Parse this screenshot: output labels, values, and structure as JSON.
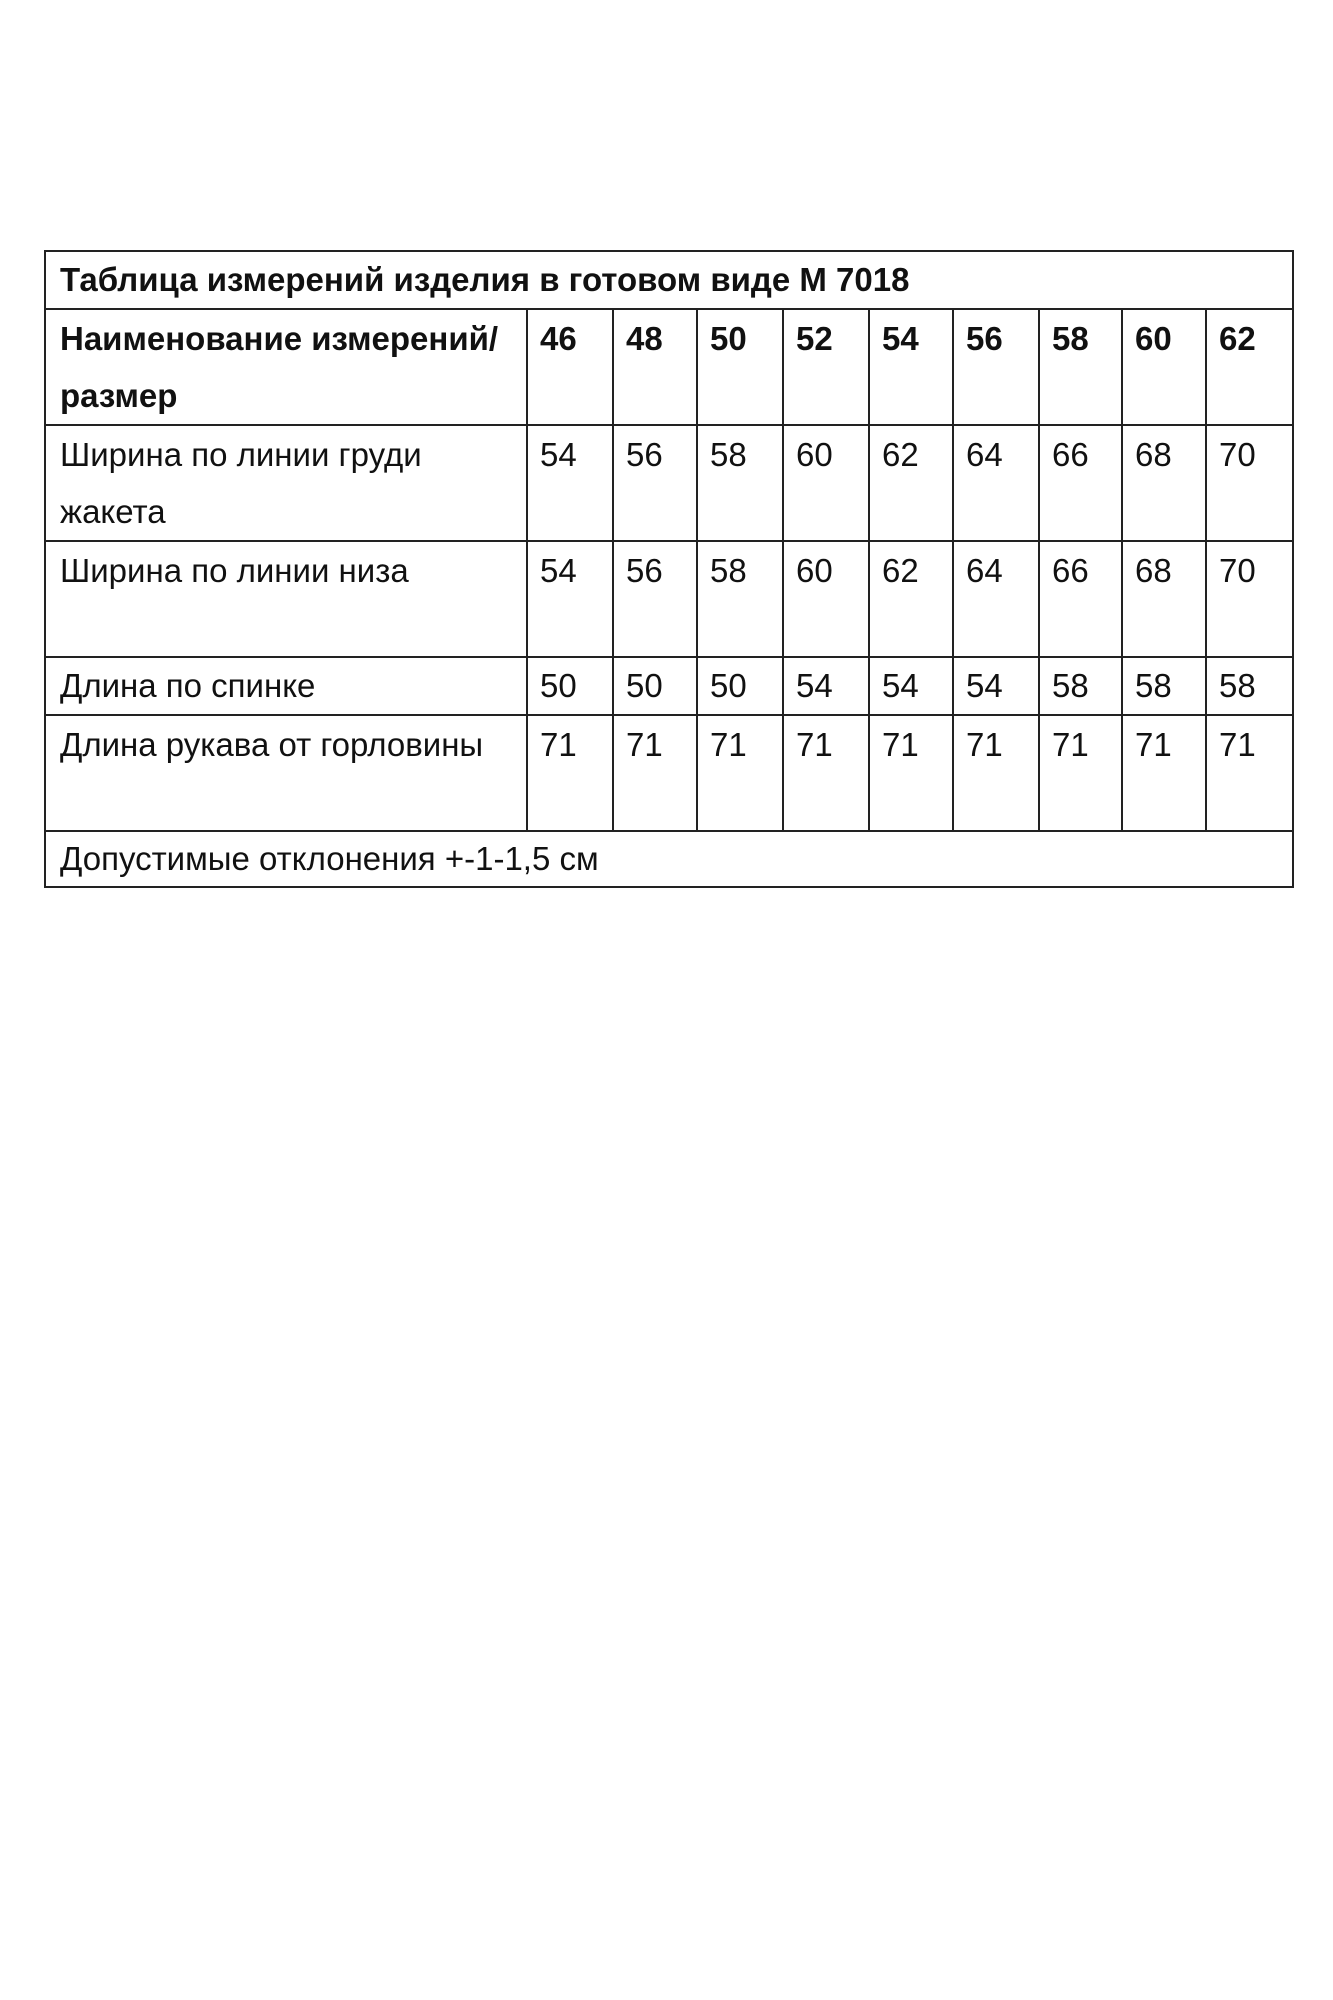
{
  "table": {
    "title": "Таблица измерений изделия в готовом виде М 7018",
    "header_label": "Наименование измерений/размер",
    "sizes": [
      "46",
      "48",
      "50",
      "52",
      "54",
      "56",
      "58",
      "60",
      "62"
    ],
    "rows": [
      {
        "label": "Ширина по линии груди жакета",
        "values": [
          "54",
          "56",
          "58",
          "60",
          "62",
          "64",
          "66",
          "68",
          "70"
        ]
      },
      {
        "label": "Ширина по линии низа",
        "values": [
          "54",
          "56",
          "58",
          "60",
          "62",
          "64",
          "66",
          "68",
          "70"
        ]
      },
      {
        "label": "Длина по спинке",
        "values": [
          "50",
          "50",
          "50",
          "54",
          "54",
          "54",
          "58",
          "58",
          "58"
        ]
      },
      {
        "label": "Длина рукава от горловины",
        "values": [
          "71",
          "71",
          "71",
          "71",
          "71",
          "71",
          "71",
          "71",
          "71"
        ]
      }
    ],
    "footer": "Допустимые отклонения +-1-1,5 см"
  }
}
